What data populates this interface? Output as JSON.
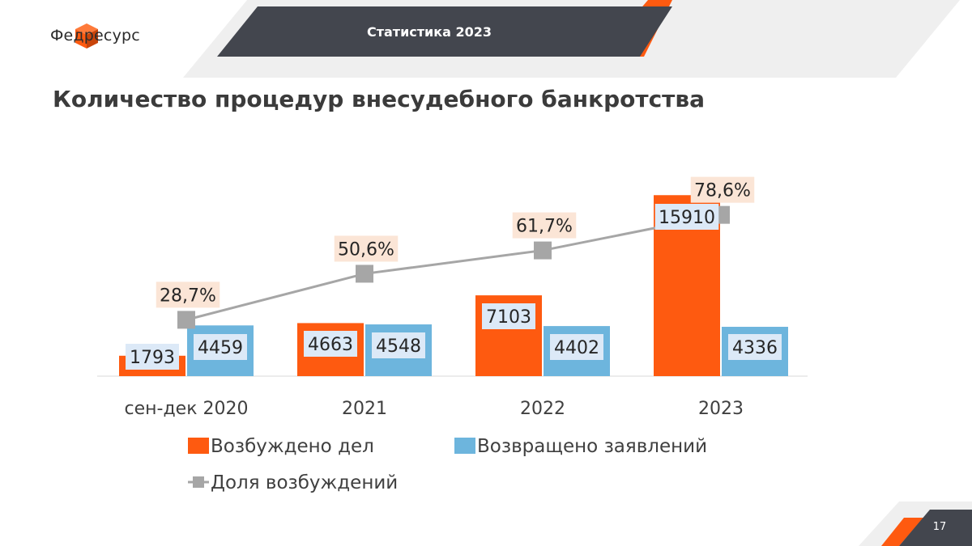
{
  "brand": {
    "name": "Федресурс"
  },
  "header": {
    "title": "Статистика 2023"
  },
  "page": {
    "title": "Количество процедур внесудебного банкротства",
    "number": "17"
  },
  "colors": {
    "orange": "#fe5a10",
    "blue": "#6db5dd",
    "gray": "#a6a6a6",
    "dark": "#43464e",
    "orange_label_bg": "#fbe5d6",
    "blue_label_bg": "#dce9f7"
  },
  "chart_data": {
    "type": "bar",
    "categories": [
      "сен-дек 2020",
      "2021",
      "2022",
      "2023"
    ],
    "series": [
      {
        "name": "Возбуждено дел",
        "type": "bar",
        "color": "#fe5a10",
        "values": [
          1793,
          4663,
          7103,
          15910
        ]
      },
      {
        "name": "Возвращено заявлений",
        "type": "bar",
        "color": "#6db5dd",
        "values": [
          4459,
          4548,
          4402,
          4336
        ]
      },
      {
        "name": "Доля возбуждений",
        "type": "line",
        "color": "#a6a6a6",
        "values": [
          28.7,
          50.6,
          61.7,
          78.6
        ],
        "labels": [
          "28,7%",
          "50,6%",
          "61,7%",
          "78,6%"
        ]
      }
    ],
    "bar_ylim": [
      0,
      16000
    ],
    "line_ylim": [
      0,
      100
    ],
    "grid": false,
    "legend_position": "bottom"
  }
}
